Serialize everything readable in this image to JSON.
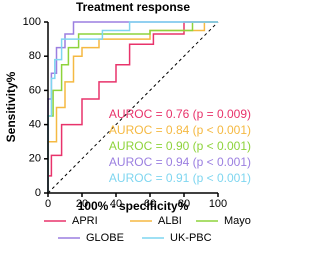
{
  "chart_data": {
    "type": "line",
    "title": "Treatment response",
    "x_label": "100% - specificity%",
    "y_label": "Sensitivity%",
    "xlim": [
      0,
      100
    ],
    "ylim": [
      0,
      100
    ],
    "xticks": [
      0,
      20,
      40,
      60,
      80,
      100
    ],
    "yticks": [
      0,
      20,
      40,
      60,
      80,
      100
    ],
    "series": [
      {
        "name": "APRI",
        "color": "#e8336b",
        "x": [
          0,
          0,
          2,
          2,
          8,
          8,
          20,
          20,
          30,
          30,
          40,
          40,
          48,
          48,
          62,
          62,
          80,
          80,
          100
        ],
        "values": [
          0,
          10,
          10,
          22,
          22,
          40,
          40,
          55,
          55,
          65,
          65,
          75,
          75,
          87,
          87,
          93,
          93,
          100,
          100
        ]
      },
      {
        "name": "ALBI",
        "color": "#f5b942",
        "x": [
          0,
          0,
          5,
          5,
          10,
          10,
          15,
          15,
          20,
          20,
          30,
          30,
          60,
          60,
          92,
          92,
          100
        ],
        "values": [
          0,
          30,
          30,
          50,
          50,
          65,
          65,
          80,
          80,
          85,
          85,
          90,
          90,
          95,
          95,
          100,
          100
        ]
      },
      {
        "name": "Mayo",
        "color": "#8ed33b",
        "x": [
          0,
          0,
          3,
          3,
          8,
          8,
          12,
          12,
          18,
          18,
          60,
          60,
          85,
          85,
          100
        ],
        "values": [
          0,
          45,
          45,
          60,
          60,
          75,
          75,
          85,
          85,
          93,
          93,
          95,
          95,
          100,
          100
        ]
      },
      {
        "name": "GLOBE",
        "color": "#9b7fe0",
        "x": [
          0,
          0,
          2,
          2,
          5,
          5,
          10,
          10,
          15,
          15,
          100
        ],
        "values": [
          0,
          55,
          55,
          70,
          70,
          85,
          85,
          93,
          93,
          100,
          100
        ]
      },
      {
        "name": "UK-PBC",
        "color": "#7fd6f0",
        "x": [
          0,
          0,
          2,
          2,
          4,
          4,
          8,
          8,
          32,
          32,
          48,
          48,
          100
        ],
        "values": [
          0,
          45,
          45,
          67,
          67,
          78,
          78,
          90,
          90,
          95,
          95,
          100,
          100
        ]
      }
    ],
    "annotations": [
      "AUROC = 0.76 (p = 0.009)",
      "AUROC = 0.84 (p < 0.001)",
      "AUROC = 0.90 (p < 0.001)",
      "AUROC = 0.94 (p < 0.001)",
      "AUROC = 0.91 (p < 0.001)"
    ]
  }
}
